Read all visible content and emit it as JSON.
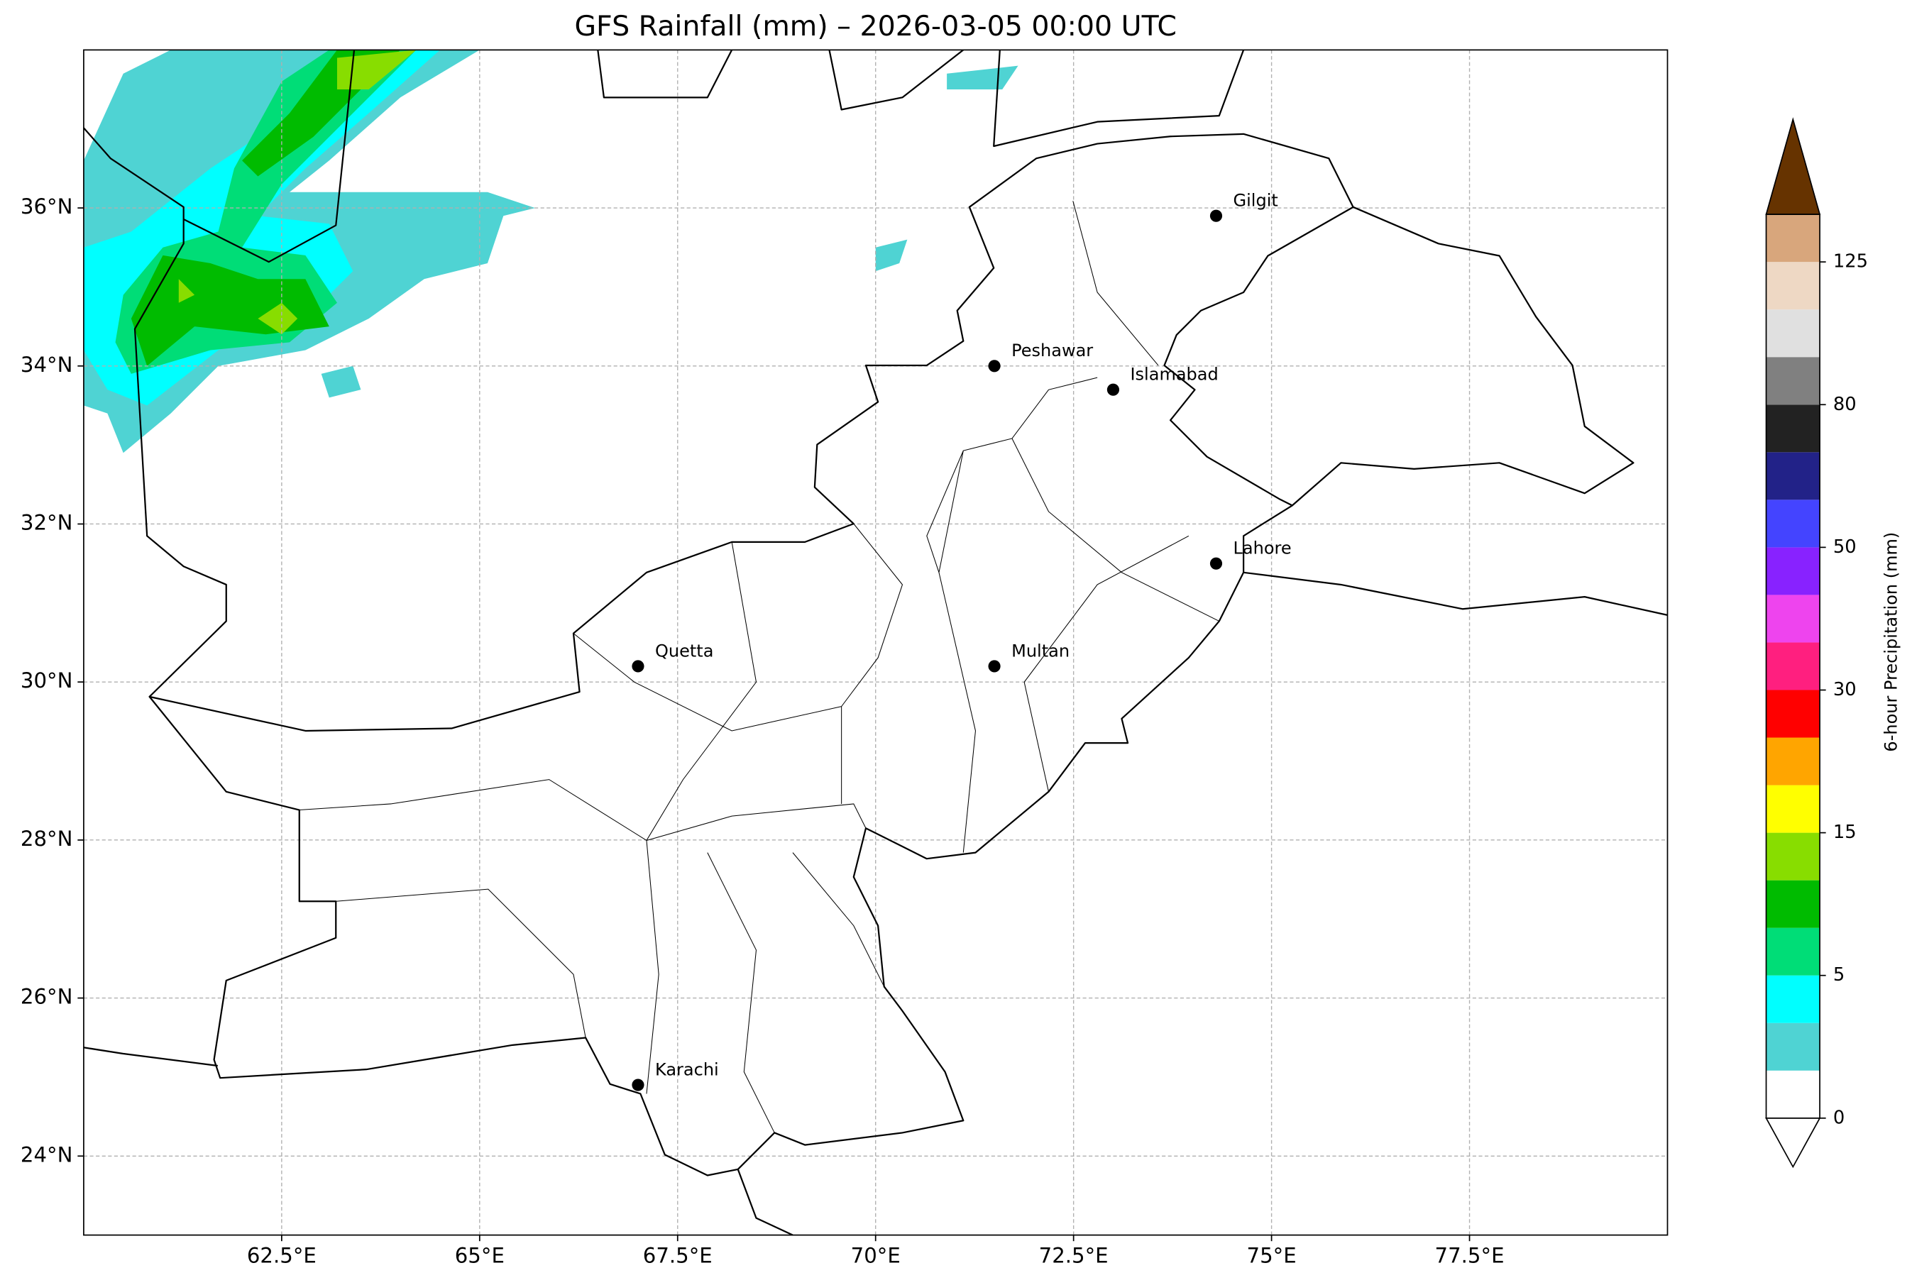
{
  "chart_data": {
    "type": "map",
    "title": "GFS Rainfall (mm) – 2026-03-05 00:00 UTC",
    "xlim": [
      60,
      80
    ],
    "ylim": [
      23,
      38
    ],
    "xticks": [
      {
        "value": 62.5,
        "label": "62.5°E"
      },
      {
        "value": 65,
        "label": "65°E"
      },
      {
        "value": 67.5,
        "label": "67.5°E"
      },
      {
        "value": 70,
        "label": "70°E"
      },
      {
        "value": 72.5,
        "label": "72.5°E"
      },
      {
        "value": 75,
        "label": "75°E"
      },
      {
        "value": 77.5,
        "label": "77.5°E"
      }
    ],
    "yticks": [
      {
        "value": 24,
        "label": "24°N"
      },
      {
        "value": 26,
        "label": "26°N"
      },
      {
        "value": 28,
        "label": "28°N"
      },
      {
        "value": 30,
        "label": "30°N"
      },
      {
        "value": 32,
        "label": "32°N"
      },
      {
        "value": 34,
        "label": "34°N"
      },
      {
        "value": 36,
        "label": "36°N"
      }
    ],
    "grid": true,
    "cities": [
      {
        "name": "Gilgit",
        "lon": 74.3,
        "lat": 35.9
      },
      {
        "name": "Peshawar",
        "lon": 71.5,
        "lat": 34.0
      },
      {
        "name": "Islamabad",
        "lon": 73.0,
        "lat": 33.7
      },
      {
        "name": "Lahore",
        "lon": 74.3,
        "lat": 31.5
      },
      {
        "name": "Quetta",
        "lon": 67.0,
        "lat": 30.2
      },
      {
        "name": "Multan",
        "lon": 71.5,
        "lat": 30.2
      },
      {
        "name": "Karachi",
        "lon": 67.0,
        "lat": 24.9
      }
    ],
    "colorbar": {
      "label": "6-hour Precipitation (mm)",
      "levels": [
        0,
        1,
        3,
        5,
        8,
        10,
        15,
        20,
        25,
        30,
        40,
        45,
        50,
        60,
        70,
        80,
        100,
        110,
        125,
        150
      ],
      "colors": [
        "#ffffff",
        "#4fd3d3",
        "#00ffff",
        "#00dd77",
        "#00bb00",
        "#88dd00",
        "#ffff00",
        "#ffa500",
        "#ff0000",
        "#ff1f7f",
        "#ee44ee",
        "#8822ff",
        "#4444ff",
        "#222288",
        "#222222",
        "#808080",
        "#e0e0e0",
        "#eed8c4",
        "#d8a67c"
      ],
      "over_color": "#663300",
      "ticks": [
        0,
        5,
        15,
        30,
        50,
        80,
        125
      ]
    },
    "rain_areas": [
      {
        "level": 1,
        "points": [
          [
            60.0,
            36.6
          ],
          [
            60.5,
            37.7
          ],
          [
            61.1,
            38.0
          ],
          [
            65.0,
            38.0
          ],
          [
            64.0,
            37.4
          ],
          [
            63.1,
            36.6
          ],
          [
            62.6,
            36.2
          ],
          [
            64.0,
            36.2
          ],
          [
            65.1,
            36.2
          ],
          [
            65.7,
            36.0
          ],
          [
            65.3,
            35.9
          ],
          [
            65.1,
            35.3
          ],
          [
            64.3,
            35.1
          ],
          [
            63.6,
            34.6
          ],
          [
            62.8,
            34.2
          ],
          [
            61.7,
            34.0
          ],
          [
            61.1,
            33.4
          ],
          [
            60.5,
            32.9
          ],
          [
            60.3,
            33.4
          ],
          [
            60.0,
            33.5
          ]
        ]
      },
      {
        "level": 1,
        "points": [
          [
            70.0,
            35.5
          ],
          [
            70.4,
            35.6
          ],
          [
            70.3,
            35.3
          ],
          [
            70.0,
            35.2
          ]
        ]
      },
      {
        "level": 1,
        "points": [
          [
            63.0,
            33.9
          ],
          [
            63.4,
            34.0
          ],
          [
            63.5,
            33.7
          ],
          [
            63.1,
            33.6
          ]
        ]
      },
      {
        "level": 1,
        "points": [
          [
            70.9,
            37.7
          ],
          [
            71.8,
            37.8
          ],
          [
            71.6,
            37.5
          ],
          [
            70.9,
            37.5
          ]
        ]
      },
      {
        "level": 2,
        "points": [
          [
            60.0,
            35.5
          ],
          [
            60.6,
            35.7
          ],
          [
            61.6,
            36.5
          ],
          [
            62.5,
            37.1
          ],
          [
            63.6,
            38.0
          ],
          [
            64.5,
            38.0
          ],
          [
            63.6,
            37.2
          ],
          [
            62.8,
            36.5
          ],
          [
            62.2,
            35.9
          ],
          [
            63.1,
            35.8
          ],
          [
            63.4,
            35.2
          ],
          [
            62.8,
            34.6
          ],
          [
            61.7,
            34.2
          ],
          [
            60.8,
            33.5
          ],
          [
            60.3,
            33.7
          ],
          [
            60.0,
            34.2
          ]
        ]
      },
      {
        "level": 3,
        "points": [
          [
            60.5,
            34.9
          ],
          [
            61.0,
            35.5
          ],
          [
            61.7,
            35.7
          ],
          [
            61.9,
            36.5
          ],
          [
            62.5,
            37.6
          ],
          [
            63.1,
            38.0
          ],
          [
            64.2,
            38.0
          ],
          [
            63.3,
            37.1
          ],
          [
            62.5,
            36.3
          ],
          [
            62.0,
            35.5
          ],
          [
            62.8,
            35.4
          ],
          [
            63.2,
            34.8
          ],
          [
            62.6,
            34.3
          ],
          [
            61.6,
            34.2
          ],
          [
            60.6,
            33.9
          ],
          [
            60.4,
            34.3
          ]
        ]
      },
      {
        "level": 4,
        "points": [
          [
            60.6,
            34.6
          ],
          [
            61.0,
            35.4
          ],
          [
            61.6,
            35.3
          ],
          [
            62.2,
            35.1
          ],
          [
            62.8,
            35.1
          ],
          [
            63.1,
            34.5
          ],
          [
            62.3,
            34.4
          ],
          [
            61.4,
            34.5
          ],
          [
            60.8,
            34.0
          ]
        ]
      },
      {
        "level": 4,
        "points": [
          [
            62.0,
            36.6
          ],
          [
            62.6,
            37.2
          ],
          [
            63.2,
            38.0
          ],
          [
            64.0,
            38.0
          ],
          [
            63.6,
            37.6
          ],
          [
            62.9,
            36.9
          ],
          [
            62.2,
            36.4
          ]
        ]
      },
      {
        "level": 5,
        "points": [
          [
            62.2,
            34.6
          ],
          [
            62.5,
            34.8
          ],
          [
            62.7,
            34.6
          ],
          [
            62.5,
            34.4
          ]
        ]
      },
      {
        "level": 5,
        "points": [
          [
            63.2,
            37.9
          ],
          [
            64.2,
            38.0
          ],
          [
            63.6,
            37.5
          ],
          [
            63.2,
            37.5
          ]
        ]
      },
      {
        "level": 5,
        "points": [
          [
            61.2,
            35.1
          ],
          [
            61.4,
            34.9
          ],
          [
            61.2,
            34.8
          ]
        ]
      }
    ]
  }
}
